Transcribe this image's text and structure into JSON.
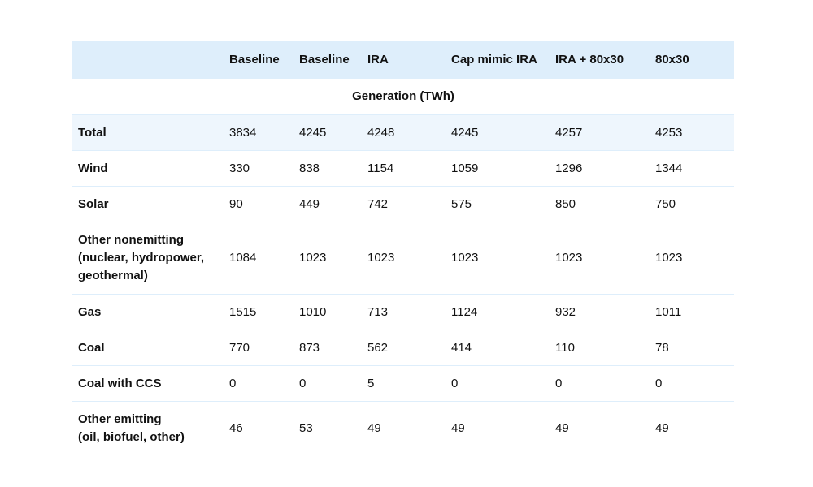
{
  "header": {
    "columns": [
      "Baseline",
      "Baseline",
      "IRA",
      "Cap mimic IRA",
      "IRA + 80x30",
      "80x30"
    ]
  },
  "section": "Generation (TWh)",
  "rows": [
    {
      "label": "Total",
      "values": [
        3834,
        4245,
        4248,
        4245,
        4257,
        4253
      ]
    },
    {
      "label": "Wind",
      "values": [
        330,
        838,
        1154,
        1059,
        1296,
        1344
      ]
    },
    {
      "label": "Solar",
      "values": [
        90,
        449,
        742,
        575,
        850,
        750
      ]
    },
    {
      "label": "Other nonemitting\n(nuclear, hydropower,\ngeothermal)",
      "values": [
        1084,
        1023,
        1023,
        1023,
        1023,
        1023
      ]
    },
    {
      "label": "Gas",
      "values": [
        1515,
        1010,
        713,
        1124,
        932,
        1011
      ]
    },
    {
      "label": "Coal",
      "values": [
        770,
        873,
        562,
        414,
        110,
        78
      ]
    },
    {
      "label": "Coal with CCS",
      "values": [
        0,
        0,
        5,
        0,
        0,
        0
      ]
    },
    {
      "label": "Other emitting\n(oil, biofuel, other)",
      "values": [
        46,
        53,
        49,
        49,
        49,
        49
      ]
    }
  ]
}
